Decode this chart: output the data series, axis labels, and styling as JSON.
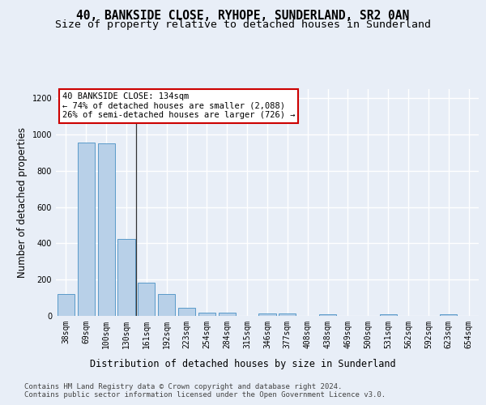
{
  "title1": "40, BANKSIDE CLOSE, RYHOPE, SUNDERLAND, SR2 0AN",
  "title2": "Size of property relative to detached houses in Sunderland",
  "xlabel": "Distribution of detached houses by size in Sunderland",
  "ylabel": "Number of detached properties",
  "categories": [
    "38sqm",
    "69sqm",
    "100sqm",
    "130sqm",
    "161sqm",
    "192sqm",
    "223sqm",
    "254sqm",
    "284sqm",
    "315sqm",
    "346sqm",
    "377sqm",
    "408sqm",
    "438sqm",
    "469sqm",
    "500sqm",
    "531sqm",
    "562sqm",
    "592sqm",
    "623sqm",
    "654sqm"
  ],
  "values": [
    120,
    955,
    950,
    425,
    185,
    120,
    45,
    20,
    20,
    0,
    15,
    15,
    0,
    10,
    0,
    0,
    10,
    0,
    0,
    10,
    0
  ],
  "bar_color": "#b8d0e8",
  "bar_edge_color": "#5a9ac9",
  "highlight_bar_index": 3,
  "highlight_line_color": "#333333",
  "annotation_text": "40 BANKSIDE CLOSE: 134sqm\n← 74% of detached houses are smaller (2,088)\n26% of semi-detached houses are larger (726) →",
  "annotation_box_color": "#ffffff",
  "annotation_box_edge_color": "#cc0000",
  "ylim": [
    0,
    1250
  ],
  "yticks": [
    0,
    200,
    400,
    600,
    800,
    1000,
    1200
  ],
  "footer_text": "Contains HM Land Registry data © Crown copyright and database right 2024.\nContains public sector information licensed under the Open Government Licence v3.0.",
  "bg_color": "#e8eef7",
  "plot_bg_color": "#e8eef7",
  "grid_color": "#ffffff",
  "title1_fontsize": 10.5,
  "title2_fontsize": 9.5,
  "axis_label_fontsize": 8.5,
  "tick_fontsize": 7,
  "footer_fontsize": 6.5,
  "annotation_fontsize": 7.5
}
